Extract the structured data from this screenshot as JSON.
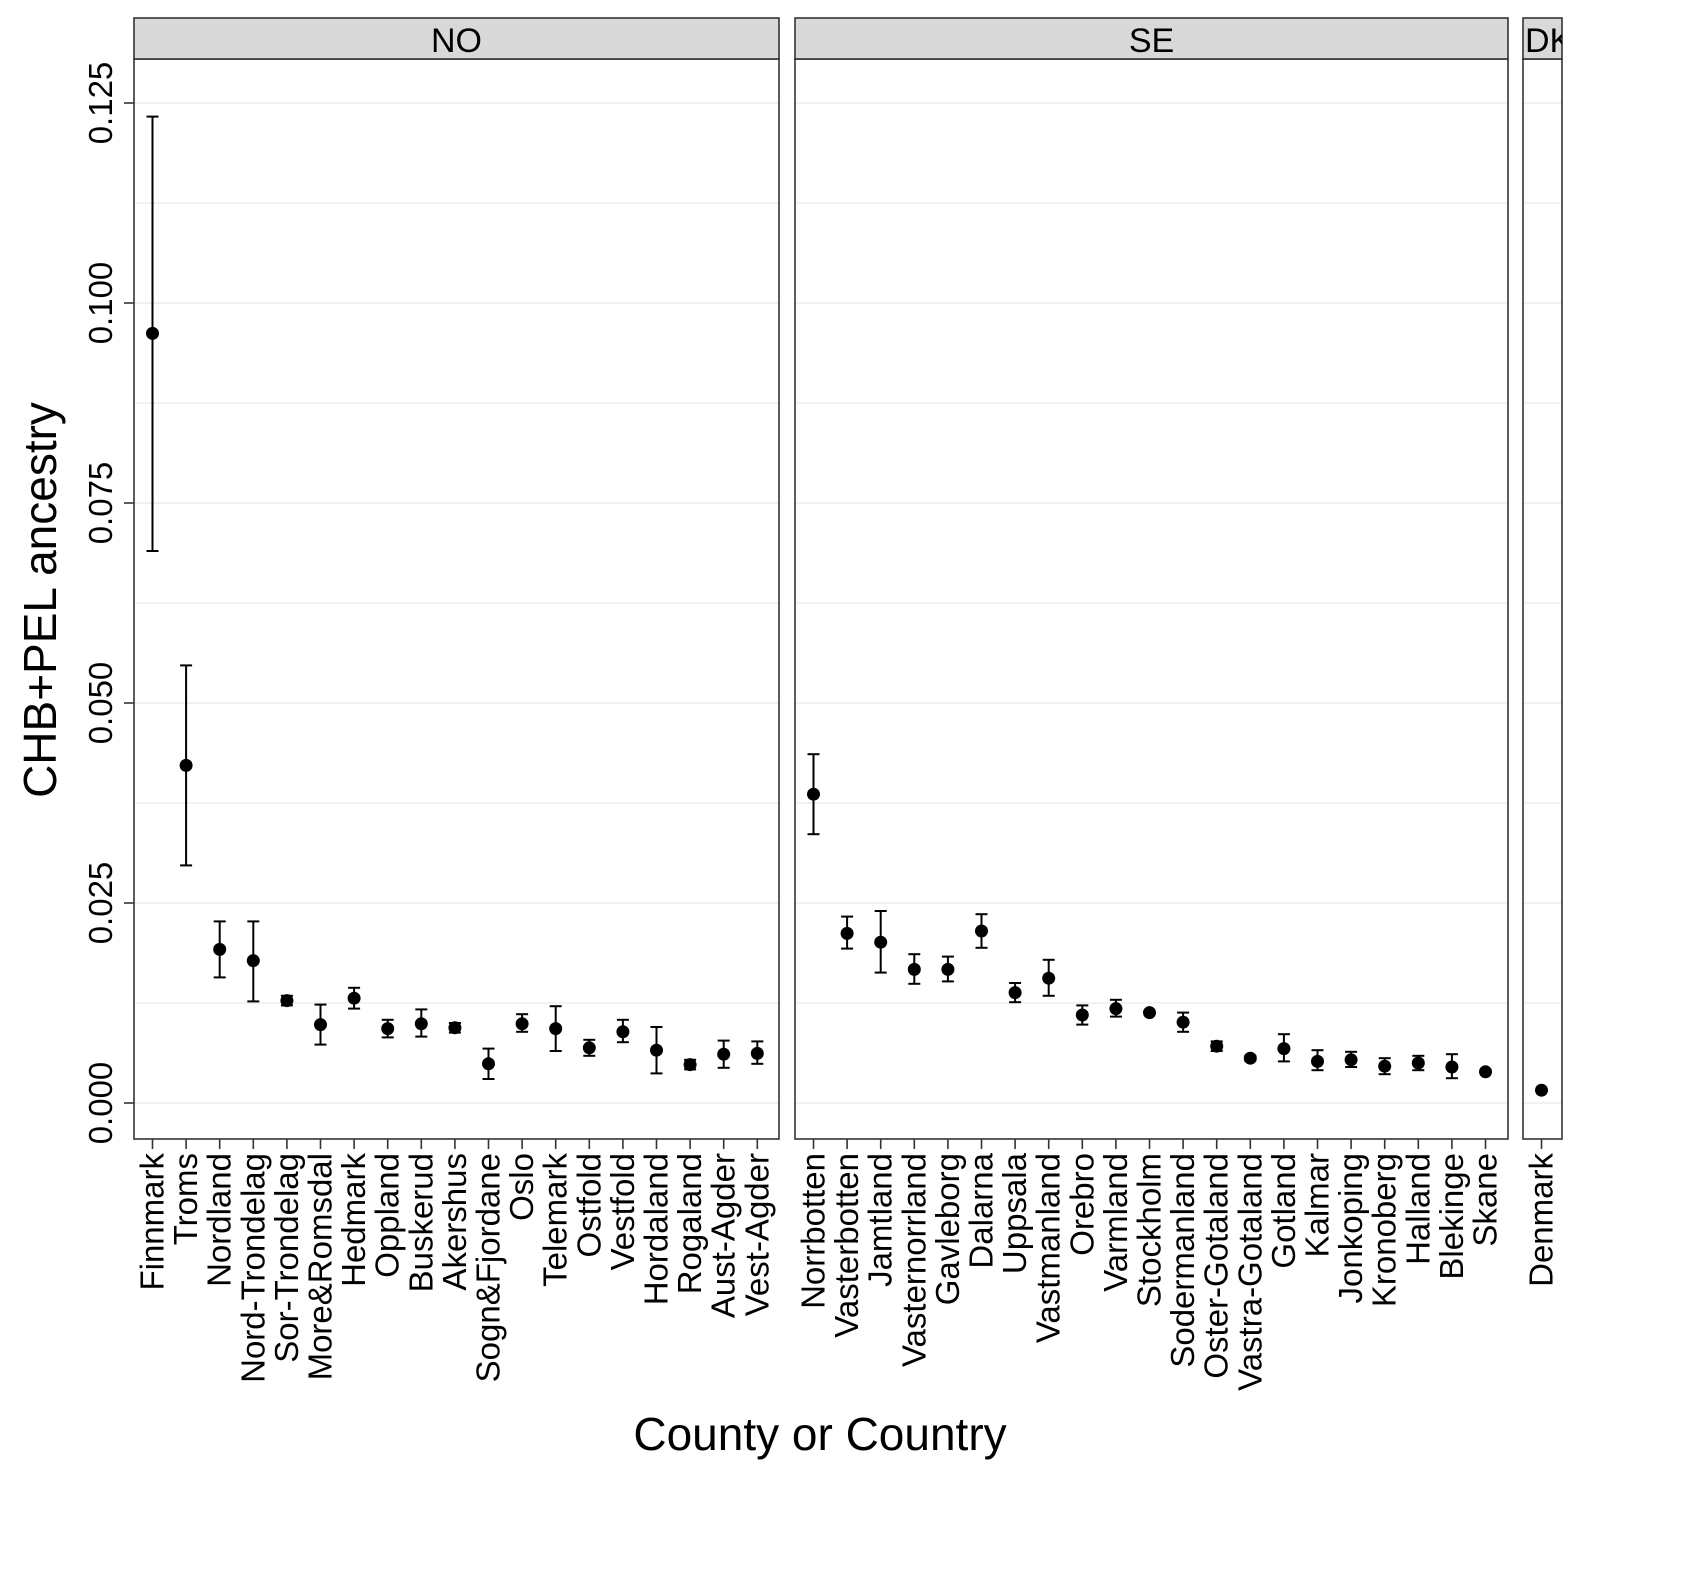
{
  "chart_data": {
    "type": "scatter",
    "title": "",
    "xlabel": "County or Country",
    "ylabel": "CHB+PEL ancestry",
    "ylim": [
      -0.0045,
      0.1305
    ],
    "y_ticks": [
      {
        "value": 0.0,
        "label": "0.000"
      },
      {
        "value": 0.025,
        "label": "0.025"
      },
      {
        "value": 0.05,
        "label": "0.050"
      },
      {
        "value": 0.075,
        "label": "0.075"
      },
      {
        "value": 0.1,
        "label": "0.100"
      },
      {
        "value": 0.125,
        "label": "0.125"
      }
    ],
    "y_minor_gridlines": [
      0.0125,
      0.0375,
      0.0625,
      0.0875,
      0.1125
    ],
    "grid": true,
    "legend": "none",
    "marker_color": "#000000",
    "panel_strip_color": "#d9d9d9",
    "panels": [
      {
        "label": "NO",
        "points": [
          {
            "category": "Finnmark",
            "y": 0.0962,
            "ymin": 0.069,
            "ymax": 0.1233
          },
          {
            "category": "Troms",
            "y": 0.0422,
            "ymin": 0.0297,
            "ymax": 0.0547
          },
          {
            "category": "Nordland",
            "y": 0.0192,
            "ymin": 0.0157,
            "ymax": 0.0227
          },
          {
            "category": "Nord-Trondelag",
            "y": 0.0178,
            "ymin": 0.0127,
            "ymax": 0.0227
          },
          {
            "category": "Sor-Trondelag",
            "y": 0.0128,
            "ymin": 0.0122,
            "ymax": 0.0134
          },
          {
            "category": "More&Romsdal",
            "y": 0.0098,
            "ymin": 0.0073,
            "ymax": 0.0123
          },
          {
            "category": "Hedmark",
            "y": 0.0131,
            "ymin": 0.0118,
            "ymax": 0.0144
          },
          {
            "category": "Oppland",
            "y": 0.0093,
            "ymin": 0.0082,
            "ymax": 0.0104
          },
          {
            "category": "Buskerud",
            "y": 0.0099,
            "ymin": 0.0083,
            "ymax": 0.0117
          },
          {
            "category": "Akershus",
            "y": 0.0094,
            "ymin": 0.0088,
            "ymax": 0.01
          },
          {
            "category": "Sogn&Fjordane",
            "y": 0.0049,
            "ymin": 0.003,
            "ymax": 0.0068
          },
          {
            "category": "Oslo",
            "y": 0.0099,
            "ymin": 0.0089,
            "ymax": 0.0111
          },
          {
            "category": "Telemark",
            "y": 0.0093,
            "ymin": 0.0065,
            "ymax": 0.0121
          },
          {
            "category": "Ostfold",
            "y": 0.0069,
            "ymin": 0.0059,
            "ymax": 0.0079
          },
          {
            "category": "Vestfold",
            "y": 0.0089,
            "ymin": 0.0076,
            "ymax": 0.0104
          },
          {
            "category": "Hordaland",
            "y": 0.0066,
            "ymin": 0.0037,
            "ymax": 0.0095
          },
          {
            "category": "Rogaland",
            "y": 0.0048,
            "ymin": 0.0042,
            "ymax": 0.0054
          },
          {
            "category": "Aust-Agder",
            "y": 0.0061,
            "ymin": 0.0044,
            "ymax": 0.0078
          },
          {
            "category": "Vest-Agder",
            "y": 0.0062,
            "ymin": 0.0049,
            "ymax": 0.0077
          }
        ]
      },
      {
        "label": "SE",
        "points": [
          {
            "category": "Norrbotten",
            "y": 0.0386,
            "ymin": 0.0336,
            "ymax": 0.0436
          },
          {
            "category": "Vasterbotten",
            "y": 0.0212,
            "ymin": 0.0193,
            "ymax": 0.0233
          },
          {
            "category": "Jamtland",
            "y": 0.0201,
            "ymin": 0.0163,
            "ymax": 0.024
          },
          {
            "category": "Vasternorrland",
            "y": 0.0167,
            "ymin": 0.0149,
            "ymax": 0.0186
          },
          {
            "category": "Gavleborg",
            "y": 0.0167,
            "ymin": 0.0152,
            "ymax": 0.0183
          },
          {
            "category": "Dalarna",
            "y": 0.0215,
            "ymin": 0.0194,
            "ymax": 0.0236
          },
          {
            "category": "Uppsala",
            "y": 0.0138,
            "ymin": 0.0126,
            "ymax": 0.015
          },
          {
            "category": "Vastmanland",
            "y": 0.0156,
            "ymin": 0.0134,
            "ymax": 0.0179
          },
          {
            "category": "Orebro",
            "y": 0.011,
            "ymin": 0.0098,
            "ymax": 0.0122
          },
          {
            "category": "Varmland",
            "y": 0.0118,
            "ymin": 0.0108,
            "ymax": 0.0129
          },
          {
            "category": "Stockholm",
            "y": 0.0113,
            "ymin": 0.0111,
            "ymax": 0.0115
          },
          {
            "category": "Sodermanland",
            "y": 0.0101,
            "ymin": 0.0089,
            "ymax": 0.0113
          },
          {
            "category": "Oster-Gotaland",
            "y": 0.0071,
            "ymin": 0.0065,
            "ymax": 0.0077
          },
          {
            "category": "Vastra-Gotaland",
            "y": 0.0056,
            "ymin": 0.0053,
            "ymax": 0.0059
          },
          {
            "category": "Gotland",
            "y": 0.0068,
            "ymin": 0.0052,
            "ymax": 0.0086
          },
          {
            "category": "Kalmar",
            "y": 0.0052,
            "ymin": 0.0041,
            "ymax": 0.0066
          },
          {
            "category": "Jonkoping",
            "y": 0.0054,
            "ymin": 0.0045,
            "ymax": 0.0064
          },
          {
            "category": "Kronoberg",
            "y": 0.0046,
            "ymin": 0.0036,
            "ymax": 0.0056
          },
          {
            "category": "Halland",
            "y": 0.005,
            "ymin": 0.0041,
            "ymax": 0.0059
          },
          {
            "category": "Blekinge",
            "y": 0.0045,
            "ymin": 0.0031,
            "ymax": 0.0061
          },
          {
            "category": "Skane",
            "y": 0.0039,
            "ymin": 0.0037,
            "ymax": 0.0041
          }
        ]
      },
      {
        "label": "DK",
        "points": [
          {
            "category": "Denmark",
            "y": 0.0016,
            "ymin": 0.0015,
            "ymax": 0.0017
          }
        ]
      }
    ]
  }
}
